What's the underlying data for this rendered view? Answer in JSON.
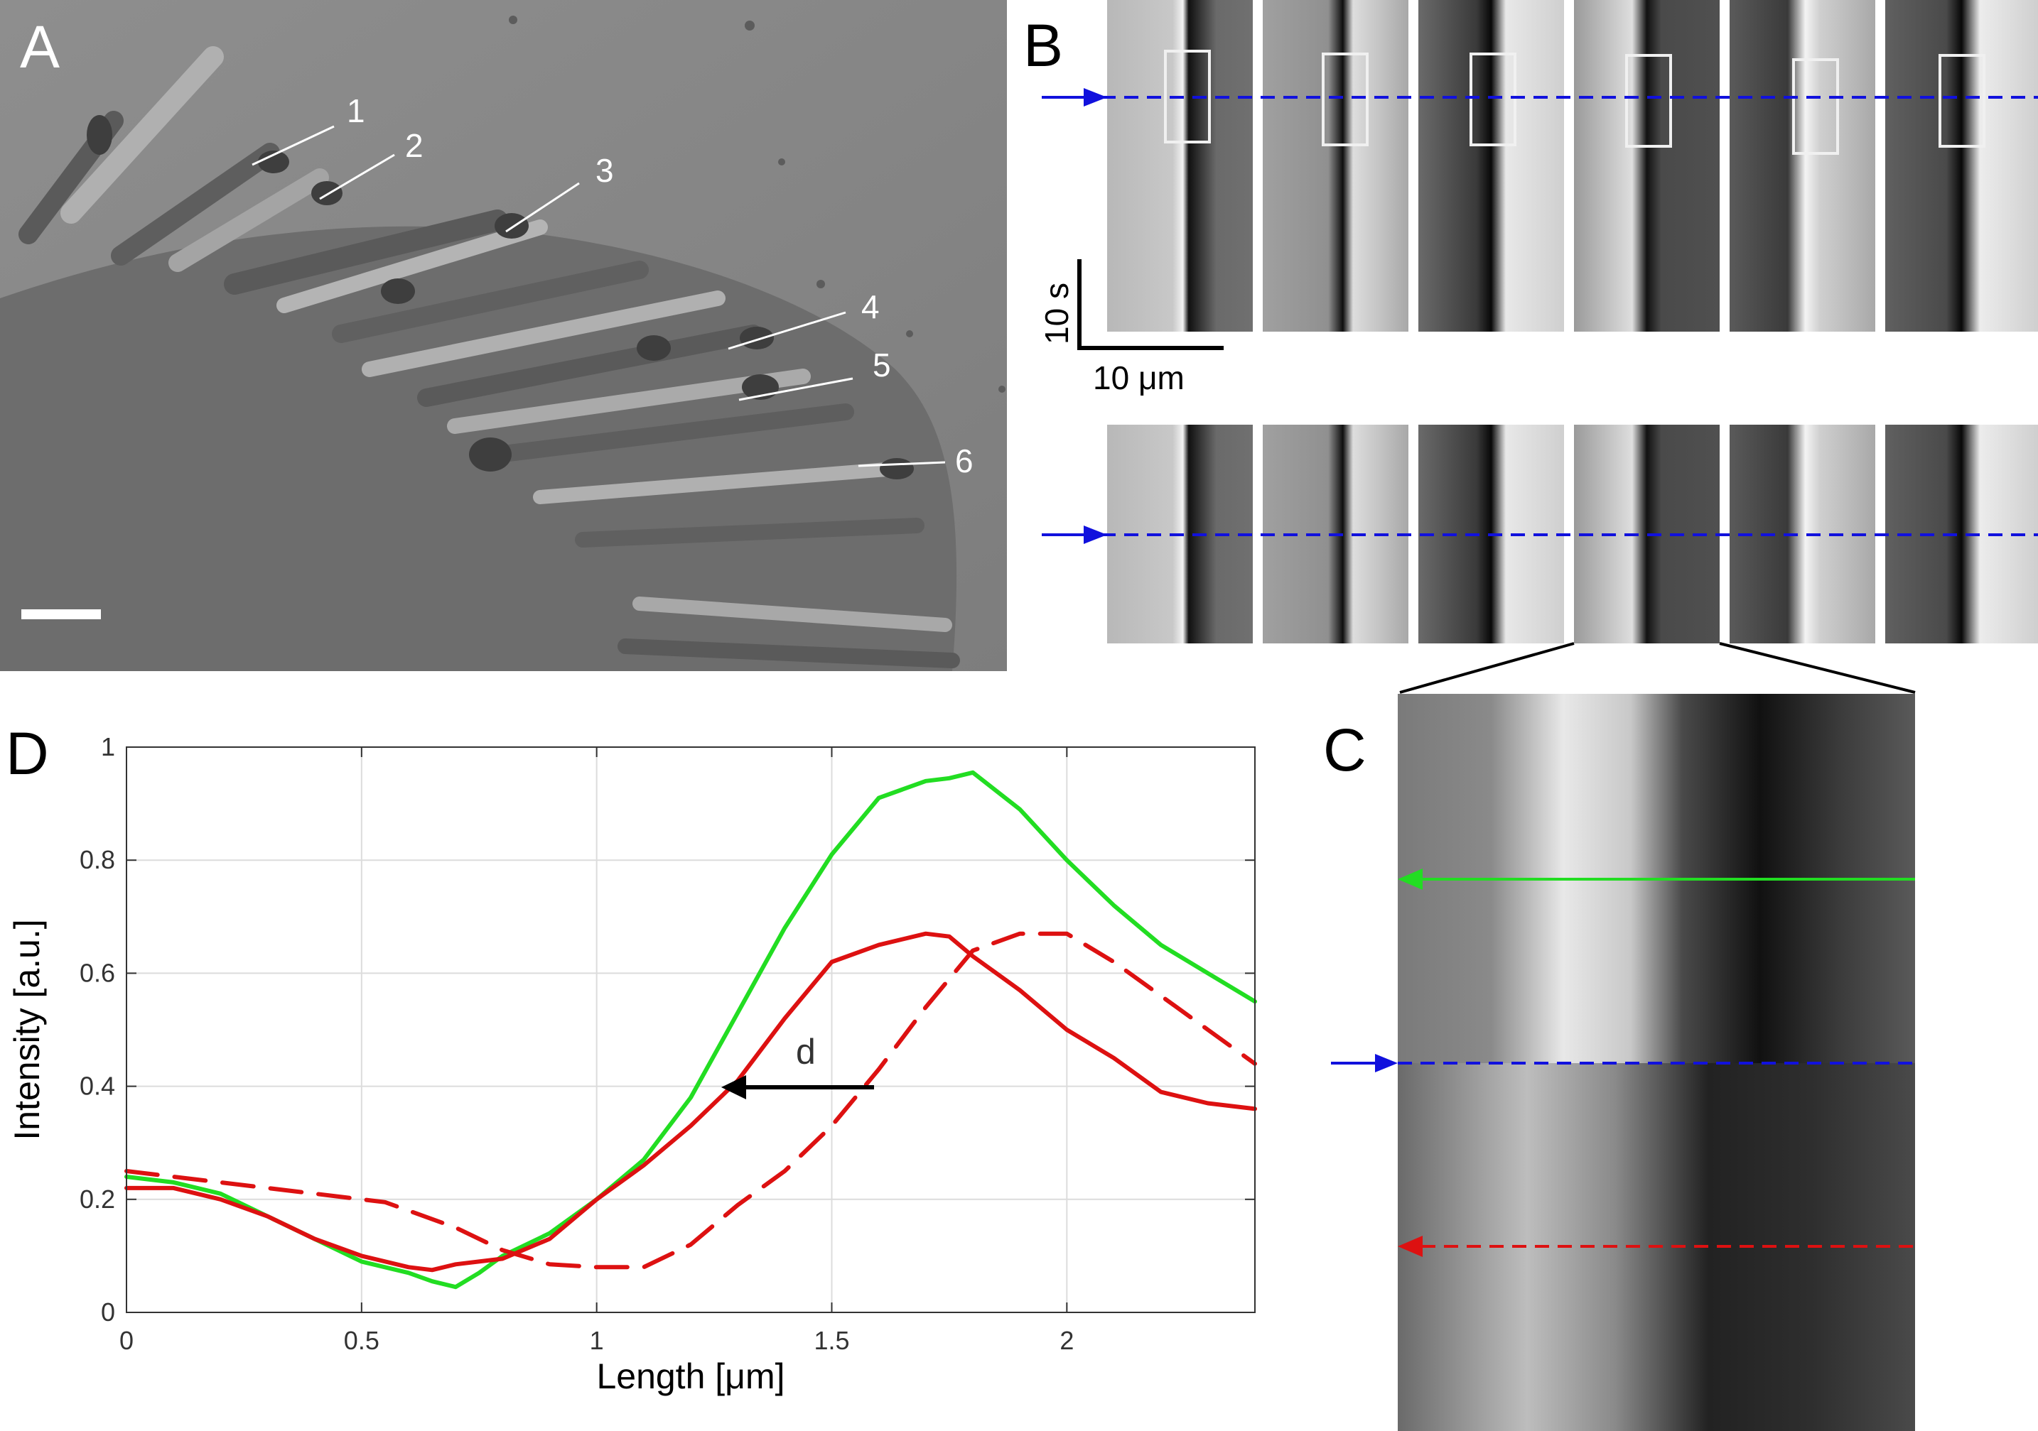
{
  "panels": {
    "a": {
      "letter": "A",
      "hair_labels": [
        "1",
        "2",
        "3",
        "4",
        "5",
        "6"
      ]
    },
    "b": {
      "letter": "B",
      "time_scale_label": "10 s",
      "length_scale_label": "10 μm"
    },
    "c": {
      "letter": "C"
    },
    "d": {
      "letter": "D",
      "annotation": "d"
    }
  },
  "colors": {
    "green": "#22dd22",
    "red": "#dd1111",
    "blue": "#1111dd",
    "black": "#000000"
  },
  "chart_data": {
    "type": "line",
    "xlabel": "Length [μm]",
    "ylabel": "Intensity [a.u.]",
    "xlim": [
      0,
      2.4
    ],
    "ylim": [
      0,
      1
    ],
    "xticks": [
      0,
      0.5,
      1,
      1.5,
      2
    ],
    "xtick_labels": [
      "0",
      "0.5",
      "1",
      "1.5",
      "2"
    ],
    "yticks": [
      0,
      0.2,
      0.4,
      0.6,
      0.8,
      1
    ],
    "ytick_labels": [
      "0",
      "0.2",
      "0.4",
      "0.6",
      "0.8",
      "1"
    ],
    "grid": true,
    "series": [
      {
        "color": "#22dd22",
        "style": "solid",
        "x": [
          0,
          0.1,
          0.2,
          0.3,
          0.4,
          0.5,
          0.6,
          0.65,
          0.7,
          0.75,
          0.8,
          0.9,
          1.0,
          1.1,
          1.2,
          1.3,
          1.4,
          1.5,
          1.6,
          1.7,
          1.75,
          1.8,
          1.9,
          2.0,
          2.1,
          2.2,
          2.3,
          2.4
        ],
        "y": [
          0.24,
          0.23,
          0.21,
          0.17,
          0.13,
          0.09,
          0.07,
          0.055,
          0.045,
          0.07,
          0.1,
          0.14,
          0.2,
          0.27,
          0.38,
          0.53,
          0.68,
          0.81,
          0.91,
          0.94,
          0.945,
          0.955,
          0.89,
          0.8,
          0.72,
          0.65,
          0.6,
          0.55
        ]
      },
      {
        "color": "#dd1111",
        "style": "solid",
        "x": [
          0,
          0.1,
          0.2,
          0.3,
          0.4,
          0.5,
          0.6,
          0.65,
          0.7,
          0.8,
          0.9,
          1.0,
          1.1,
          1.2,
          1.3,
          1.4,
          1.5,
          1.6,
          1.7,
          1.75,
          1.8,
          1.9,
          2.0,
          2.1,
          2.2,
          2.3,
          2.4
        ],
        "y": [
          0.22,
          0.22,
          0.2,
          0.17,
          0.13,
          0.1,
          0.08,
          0.075,
          0.085,
          0.095,
          0.13,
          0.2,
          0.26,
          0.33,
          0.41,
          0.52,
          0.62,
          0.65,
          0.67,
          0.665,
          0.63,
          0.57,
          0.5,
          0.45,
          0.39,
          0.37,
          0.36
        ]
      },
      {
        "color": "#dd1111",
        "style": "dashed",
        "x": [
          0,
          0.1,
          0.2,
          0.3,
          0.4,
          0.5,
          0.55,
          0.6,
          0.7,
          0.8,
          0.9,
          1.0,
          1.1,
          1.2,
          1.3,
          1.4,
          1.5,
          1.6,
          1.7,
          1.8,
          1.9,
          2.0,
          2.1,
          2.2,
          2.3,
          2.4
        ],
        "y": [
          0.25,
          0.24,
          0.23,
          0.22,
          0.21,
          0.2,
          0.195,
          0.18,
          0.15,
          0.11,
          0.085,
          0.08,
          0.08,
          0.12,
          0.19,
          0.25,
          0.33,
          0.43,
          0.54,
          0.64,
          0.67,
          0.67,
          0.62,
          0.56,
          0.5,
          0.44
        ]
      }
    ]
  }
}
